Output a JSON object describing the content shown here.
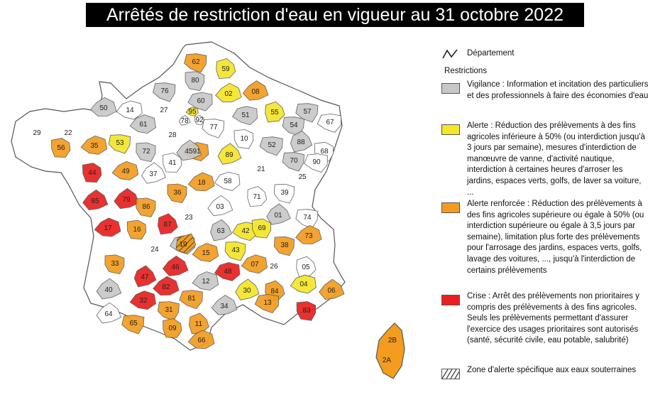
{
  "title": "Arrêtés de restriction d'eau en vigueur au 31 octobre 2022",
  "colors": {
    "vigilance": "#c8c8c8",
    "alerte": "#f5e62a",
    "alerte_renforcee": "#f39c1f",
    "crise": "#e8201f",
    "none": "#ffffff",
    "border": "#555555"
  },
  "legend": {
    "departement_label": "Département",
    "departement_icon": "boundary-line-icon",
    "restrictions_heading": "Restrictions",
    "vigilance": "Vigilance : Information et incitation des particuliers et des professionnels à faire des économies d'eau",
    "alerte": "Alerte : Réduction des prélèvements à des fins agricoles inférieure à 50% (ou interdiction jusqu'à 3 jours par semaine), mesures d'interdiction de manœuvre de vanne, d'activité nautique, interdiction à certaines heures d'arroser les jardins, espaces verts, golfs, de laver sa voiture, ...",
    "alerte_renforcee": "Alerte renforcée : Réduction des prélèvements à des fins agricoles supérieure ou égale à 50% (ou interdiction supérieure ou égale à 3,5 jours par semaine), limitation plus forte des prélèvements pour l'arrosage des jardins, espaces verts, golfs, lavage des voitures, ..., jusqu'à l'interdiction de certains prélèvements",
    "crise": "Crise : Arrêt des prélèvements non prioritaires y compris des prélèvements à des fins agricoles. Seuls les prélèvements permettant d'assurer l'exercice des usages prioritaires sont autorisés (santé, sécurité civile, eau potable, salubrité)",
    "zone_souterraine": "Zone d'alerte spécifique aux eaux souterraines",
    "zone_icon": "hatched-zone-icon"
  },
  "departments": [
    {
      "code": "62",
      "level": "alerte_renforcee"
    },
    {
      "code": "59",
      "level": "alerte"
    },
    {
      "code": "76",
      "level": "vigilance"
    },
    {
      "code": "80",
      "level": "vigilance"
    },
    {
      "code": "02",
      "level": "alerte"
    },
    {
      "code": "08",
      "level": "alerte_renforcee"
    },
    {
      "code": "60",
      "level": "vigilance"
    },
    {
      "code": "50",
      "level": "vigilance"
    },
    {
      "code": "14",
      "level": "none"
    },
    {
      "code": "27",
      "level": "none"
    },
    {
      "code": "95",
      "level": "alerte"
    },
    {
      "code": "55",
      "level": "alerte"
    },
    {
      "code": "57",
      "level": "vigilance"
    },
    {
      "code": "67",
      "level": "none"
    },
    {
      "code": "61",
      "level": "vigilance"
    },
    {
      "code": "78",
      "level": "none"
    },
    {
      "code": "92",
      "level": "none"
    },
    {
      "code": "51",
      "level": "vigilance"
    },
    {
      "code": "54",
      "level": "vigilance"
    },
    {
      "code": "29",
      "level": "alerte_renforcee"
    },
    {
      "code": "22",
      "level": "vigilance"
    },
    {
      "code": "28",
      "level": "none"
    },
    {
      "code": "77",
      "level": "none"
    },
    {
      "code": "10",
      "level": "none"
    },
    {
      "code": "88",
      "level": "vigilance"
    },
    {
      "code": "68",
      "level": "none"
    },
    {
      "code": "56",
      "level": "alerte_renforcee"
    },
    {
      "code": "35",
      "level": "alerte_renforcee"
    },
    {
      "code": "53",
      "level": "alerte"
    },
    {
      "code": "72",
      "level": "vigilance"
    },
    {
      "code": "91",
      "level": "alerte_renforcee"
    },
    {
      "code": "52",
      "level": "vigilance"
    },
    {
      "code": "41",
      "level": "none"
    },
    {
      "code": "45",
      "level": "vigilance"
    },
    {
      "code": "89",
      "level": "alerte"
    },
    {
      "code": "70",
      "level": "vigilance"
    },
    {
      "code": "90",
      "level": "none"
    },
    {
      "code": "44",
      "level": "crise"
    },
    {
      "code": "49",
      "level": "alerte_renforcee"
    },
    {
      "code": "37",
      "level": "none"
    },
    {
      "code": "21",
      "level": "vigilance"
    },
    {
      "code": "25",
      "level": "vigilance"
    },
    {
      "code": "18",
      "level": "alerte_renforcee"
    },
    {
      "code": "58",
      "level": "none"
    },
    {
      "code": "39",
      "level": "none"
    },
    {
      "code": "36",
      "level": "alerte_renforcee"
    },
    {
      "code": "71",
      "level": "none"
    },
    {
      "code": "79",
      "level": "crise"
    },
    {
      "code": "85",
      "level": "crise"
    },
    {
      "code": "86",
      "level": "alerte_renforcee"
    },
    {
      "code": "03",
      "level": "none"
    },
    {
      "code": "01",
      "level": "vigilance"
    },
    {
      "code": "74",
      "level": "none"
    },
    {
      "code": "23",
      "level": "alerte"
    },
    {
      "code": "17",
      "level": "crise"
    },
    {
      "code": "16",
      "level": "alerte_renforcee"
    },
    {
      "code": "87",
      "level": "crise"
    },
    {
      "code": "63",
      "level": "vigilance"
    },
    {
      "code": "42",
      "level": "alerte"
    },
    {
      "code": "69",
      "level": "alerte"
    },
    {
      "code": "73",
      "level": "alerte_renforcee"
    },
    {
      "code": "19",
      "level": "vigilance"
    },
    {
      "code": "38",
      "level": "alerte_renforcee"
    },
    {
      "code": "24",
      "level": "alerte"
    },
    {
      "code": "15",
      "level": "alerte_renforcee"
    },
    {
      "code": "43",
      "level": "alerte"
    },
    {
      "code": "33",
      "level": "alerte_renforcee"
    },
    {
      "code": "46",
      "level": "crise"
    },
    {
      "code": "48",
      "level": "crise"
    },
    {
      "code": "07",
      "level": "alerte_renforcee"
    },
    {
      "code": "26",
      "level": "vigilance"
    },
    {
      "code": "05",
      "level": "none"
    },
    {
      "code": "47",
      "level": "crise"
    },
    {
      "code": "12",
      "level": "vigilance"
    },
    {
      "code": "82",
      "level": "crise"
    },
    {
      "code": "04",
      "level": "alerte"
    },
    {
      "code": "40",
      "level": "vigilance"
    },
    {
      "code": "81",
      "level": "alerte_renforcee"
    },
    {
      "code": "30",
      "level": "alerte"
    },
    {
      "code": "84",
      "level": "alerte_renforcee"
    },
    {
      "code": "06",
      "level": "alerte_renforcee"
    },
    {
      "code": "32",
      "level": "crise"
    },
    {
      "code": "34",
      "level": "vigilance"
    },
    {
      "code": "13",
      "level": "alerte_renforcee"
    },
    {
      "code": "83",
      "level": "crise"
    },
    {
      "code": "31",
      "level": "alerte_renforcee"
    },
    {
      "code": "11",
      "level": "alerte_renforcee"
    },
    {
      "code": "64",
      "level": "none"
    },
    {
      "code": "65",
      "level": "alerte_renforcee"
    },
    {
      "code": "09",
      "level": "alerte_renforcee"
    },
    {
      "code": "66",
      "level": "alerte_renforcee"
    },
    {
      "code": "2B",
      "level": "alerte_renforcee"
    },
    {
      "code": "2A",
      "level": "alerte_renforcee"
    }
  ]
}
